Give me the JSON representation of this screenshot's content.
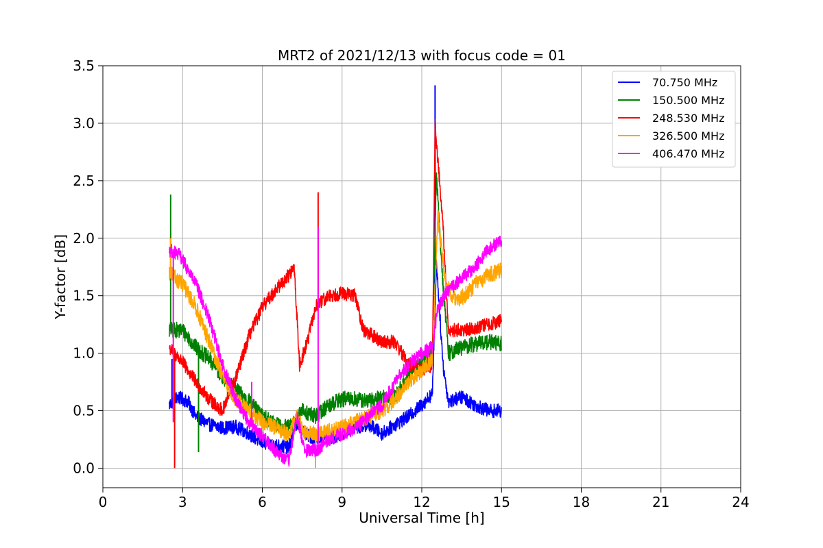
{
  "chart_data": {
    "type": "line",
    "title": "MRT2 of 2021/12/13 with focus code = 01",
    "xlabel": "Universal Time [h]",
    "ylabel": "Y-factor [dB]",
    "xlim": [
      0,
      24
    ],
    "ylim": [
      -0.17,
      3.5
    ],
    "xticks": [
      0,
      3,
      6,
      9,
      12,
      15,
      18,
      21,
      24
    ],
    "xtick_labels": [
      "0",
      "3",
      "6",
      "9",
      "12",
      "15",
      "18",
      "21",
      "24"
    ],
    "yticks": [
      0.0,
      0.5,
      1.0,
      1.5,
      2.0,
      2.5,
      3.0,
      3.5
    ],
    "ytick_labels": [
      "0.0",
      "0.5",
      "1.0",
      "1.5",
      "2.0",
      "2.5",
      "3.0",
      "3.5"
    ],
    "grid": true,
    "legend_position": "top-right",
    "series": [
      {
        "name": " 70.750 MHz",
        "color": "#0000ff",
        "noise": 0.06,
        "points": [
          [
            2.5,
            0.55
          ],
          [
            2.8,
            0.62
          ],
          [
            3.2,
            0.58
          ],
          [
            3.5,
            0.45
          ],
          [
            4.0,
            0.38
          ],
          [
            4.5,
            0.35
          ],
          [
            5.0,
            0.36
          ],
          [
            5.5,
            0.3
          ],
          [
            6.0,
            0.22
          ],
          [
            6.5,
            0.2
          ],
          [
            7.0,
            0.18
          ],
          [
            7.3,
            0.4
          ],
          [
            7.6,
            0.3
          ],
          [
            8.0,
            0.25
          ],
          [
            8.5,
            0.26
          ],
          [
            9.0,
            0.3
          ],
          [
            9.5,
            0.35
          ],
          [
            10.0,
            0.38
          ],
          [
            10.5,
            0.3
          ],
          [
            11.0,
            0.38
          ],
          [
            11.5,
            0.45
          ],
          [
            12.0,
            0.55
          ],
          [
            12.4,
            0.65
          ],
          [
            12.55,
            1.8
          ],
          [
            12.8,
            0.9
          ],
          [
            13.0,
            0.58
          ],
          [
            13.5,
            0.62
          ],
          [
            14.0,
            0.55
          ],
          [
            14.5,
            0.5
          ],
          [
            15.0,
            0.5
          ]
        ],
        "spikes": [
          [
            12.5,
            3.33
          ],
          [
            2.6,
            0.95
          ]
        ]
      },
      {
        "name": "150.500 MHz",
        "color": "#008000",
        "noise": 0.07,
        "points": [
          [
            2.5,
            1.2
          ],
          [
            3.0,
            1.2
          ],
          [
            3.5,
            1.05
          ],
          [
            4.0,
            0.95
          ],
          [
            4.5,
            0.8
          ],
          [
            5.0,
            0.68
          ],
          [
            5.5,
            0.58
          ],
          [
            6.0,
            0.45
          ],
          [
            6.5,
            0.38
          ],
          [
            7.0,
            0.35
          ],
          [
            7.2,
            0.4
          ],
          [
            7.5,
            0.5
          ],
          [
            8.0,
            0.45
          ],
          [
            8.5,
            0.55
          ],
          [
            9.0,
            0.6
          ],
          [
            9.5,
            0.6
          ],
          [
            10.0,
            0.58
          ],
          [
            10.5,
            0.62
          ],
          [
            11.0,
            0.62
          ],
          [
            11.5,
            0.8
          ],
          [
            12.0,
            0.95
          ],
          [
            12.4,
            1.0
          ],
          [
            12.55,
            2.55
          ],
          [
            12.8,
            1.6
          ],
          [
            13.0,
            1.0
          ],
          [
            13.5,
            1.05
          ],
          [
            14.0,
            1.08
          ],
          [
            14.5,
            1.1
          ],
          [
            15.0,
            1.08
          ]
        ],
        "spikes": [
          [
            2.55,
            2.38
          ],
          [
            3.6,
            0.14
          ]
        ]
      },
      {
        "name": "248.530 MHz",
        "color": "#ff0000",
        "noise": 0.06,
        "points": [
          [
            2.5,
            1.05
          ],
          [
            3.0,
            0.92
          ],
          [
            3.5,
            0.75
          ],
          [
            4.0,
            0.6
          ],
          [
            4.5,
            0.5
          ],
          [
            5.0,
            0.78
          ],
          [
            5.5,
            1.15
          ],
          [
            6.0,
            1.4
          ],
          [
            6.5,
            1.55
          ],
          [
            7.0,
            1.68
          ],
          [
            7.2,
            1.75
          ],
          [
            7.4,
            0.9
          ],
          [
            7.7,
            1.1
          ],
          [
            8.0,
            1.4
          ],
          [
            8.5,
            1.5
          ],
          [
            9.0,
            1.52
          ],
          [
            9.5,
            1.5
          ],
          [
            9.8,
            1.2
          ],
          [
            10.5,
            1.1
          ],
          [
            11.0,
            1.1
          ],
          [
            11.5,
            0.9
          ],
          [
            12.0,
            0.85
          ],
          [
            12.4,
            0.9
          ],
          [
            12.5,
            3.0
          ],
          [
            12.8,
            2.1
          ],
          [
            13.0,
            1.2
          ],
          [
            13.5,
            1.2
          ],
          [
            14.0,
            1.22
          ],
          [
            14.5,
            1.25
          ],
          [
            15.0,
            1.28
          ]
        ],
        "spikes": [
          [
            8.1,
            2.4
          ],
          [
            2.7,
            0.0
          ]
        ]
      },
      {
        "name": "326.500 MHz",
        "color": "#ffa500",
        "noise": 0.07,
        "points": [
          [
            2.5,
            1.7
          ],
          [
            3.0,
            1.6
          ],
          [
            3.5,
            1.4
          ],
          [
            4.0,
            1.1
          ],
          [
            4.5,
            0.8
          ],
          [
            5.0,
            0.6
          ],
          [
            5.5,
            0.5
          ],
          [
            6.0,
            0.4
          ],
          [
            6.5,
            0.35
          ],
          [
            7.0,
            0.3
          ],
          [
            7.3,
            0.45
          ],
          [
            7.6,
            0.3
          ],
          [
            8.0,
            0.3
          ],
          [
            8.5,
            0.32
          ],
          [
            9.0,
            0.35
          ],
          [
            9.5,
            0.4
          ],
          [
            10.0,
            0.45
          ],
          [
            10.5,
            0.5
          ],
          [
            11.0,
            0.6
          ],
          [
            11.5,
            0.75
          ],
          [
            12.0,
            0.85
          ],
          [
            12.4,
            0.95
          ],
          [
            12.6,
            2.2
          ],
          [
            12.9,
            1.6
          ],
          [
            13.3,
            1.45
          ],
          [
            13.7,
            1.52
          ],
          [
            14.0,
            1.6
          ],
          [
            14.5,
            1.68
          ],
          [
            15.0,
            1.72
          ]
        ],
        "spikes": [
          [
            8.0,
            0.0
          ],
          [
            2.55,
            2.0
          ]
        ]
      },
      {
        "name": "406.470 MHz",
        "color": "#ff00ff",
        "noise": 0.06,
        "points": [
          [
            2.5,
            1.9
          ],
          [
            2.9,
            1.85
          ],
          [
            3.5,
            1.6
          ],
          [
            4.0,
            1.3
          ],
          [
            4.5,
            0.9
          ],
          [
            5.0,
            0.6
          ],
          [
            5.5,
            0.4
          ],
          [
            6.0,
            0.28
          ],
          [
            6.5,
            0.15
          ],
          [
            7.0,
            0.06
          ],
          [
            7.3,
            0.45
          ],
          [
            7.6,
            0.15
          ],
          [
            8.0,
            0.15
          ],
          [
            8.5,
            0.25
          ],
          [
            9.0,
            0.3
          ],
          [
            9.5,
            0.35
          ],
          [
            10.0,
            0.45
          ],
          [
            10.5,
            0.55
          ],
          [
            11.0,
            0.75
          ],
          [
            11.5,
            0.9
          ],
          [
            12.0,
            1.0
          ],
          [
            12.4,
            1.05
          ],
          [
            12.6,
            1.4
          ],
          [
            13.0,
            1.55
          ],
          [
            13.5,
            1.65
          ],
          [
            14.0,
            1.75
          ],
          [
            14.5,
            1.9
          ],
          [
            15.0,
            1.98
          ]
        ],
        "spikes": [
          [
            8.1,
            2.1
          ],
          [
            5.6,
            0.75
          ],
          [
            2.65,
            0.4
          ]
        ]
      }
    ]
  }
}
